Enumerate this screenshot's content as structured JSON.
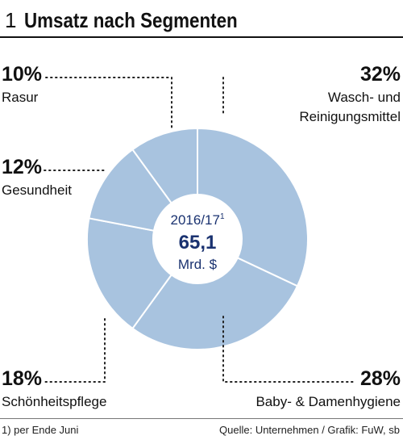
{
  "figure": {
    "number": "1",
    "title": "Umsatz nach Segmenten"
  },
  "center": {
    "period": "2016/17",
    "period_sup": "1",
    "value": "65,1",
    "unit": "Mrd. $"
  },
  "footnote": "1) per Ende Juni",
  "source": "Quelle: Unternehmen / Grafik: FuW, sb",
  "colors": {
    "slice_fill": "#a8c3df",
    "slice_stroke": "#ffffff",
    "accent_text": "#1a3270",
    "leader": "#222222"
  },
  "chart_data": {
    "type": "pie",
    "variant": "donut",
    "title": "Umsatz nach Segmenten",
    "total_label": "65,1 Mrd. $",
    "slices": [
      {
        "label": "Wasch- und Reinigungsmittel",
        "percent_label": "32%",
        "value": 32
      },
      {
        "label": "Baby- & Damenhygiene",
        "percent_label": "28%",
        "value": 28
      },
      {
        "label": "Schönheitspflege",
        "percent_label": "18%",
        "value": 18
      },
      {
        "label": "Gesundheit",
        "percent_label": "12%",
        "value": 12
      },
      {
        "label": "Rasur",
        "percent_label": "10%",
        "value": 10
      }
    ]
  }
}
